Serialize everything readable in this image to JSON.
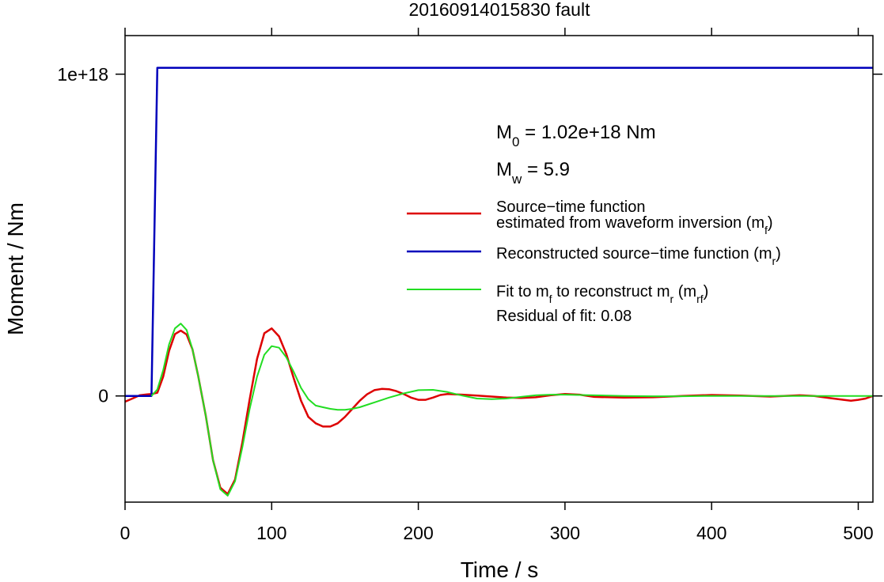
{
  "chart_data": {
    "type": "line",
    "title": "20160914015830 fault",
    "xlabel": "Time / s",
    "ylabel": "Moment / Nm",
    "xlim": [
      0,
      510
    ],
    "ylim": [
      -3.3e+17,
      1.12e+18
    ],
    "x_ticks": [
      0,
      100,
      200,
      300,
      400,
      500
    ],
    "x_tick_labels": [
      "0",
      "100",
      "200",
      "300",
      "400",
      "500"
    ],
    "y_ticks": [
      0,
      1e+18
    ],
    "y_tick_labels": [
      "0",
      "1e+18"
    ],
    "grid": false,
    "legend_placement": "right",
    "annotations": {
      "m0": "M₀ = 1.02e+18 Nm",
      "mw": "M_w = 5.9",
      "residual": "Residual of fit: 0.08"
    },
    "legend": [
      {
        "color": "#dd0000",
        "lines": [
          "Source−time function",
          "estimated from waveform inversion (m_f)"
        ]
      },
      {
        "color": "#0000bb",
        "lines": [
          "Reconstructed source−time function (m_r)"
        ]
      },
      {
        "color": "#22dd22",
        "lines": [
          "Fit to m_f to reconstruct m_r (m_rf)"
        ]
      }
    ],
    "series": [
      {
        "color": "#dd0000",
        "x": [
          0,
          5,
          10,
          15,
          18,
          22,
          26,
          30,
          34,
          38,
          42,
          46,
          50,
          55,
          60,
          65,
          70,
          75,
          80,
          85,
          90,
          95,
          100,
          105,
          110,
          115,
          120,
          125,
          130,
          135,
          140,
          145,
          150,
          155,
          160,
          165,
          170,
          175,
          180,
          185,
          190,
          195,
          200,
          205,
          210,
          215,
          220,
          230,
          240,
          250,
          260,
          270,
          280,
          290,
          300,
          310,
          320,
          340,
          360,
          380,
          400,
          420,
          440,
          460,
          470,
          480,
          490,
          495,
          500,
          505,
          510
        ],
        "y": [
          -1.8e+16,
          -8000000000000000.0,
          2000000000000000.0,
          5000000000000000.0,
          6000000000000000.0,
          1e+16,
          6e+16,
          1.4e+17,
          1.92e+17,
          2.03e+17,
          1.91e+17,
          1.45e+17,
          6e+16,
          -6e+16,
          -2e+17,
          -2.85e+17,
          -3.05e+17,
          -2.6e+17,
          -1.45e+17,
          -1e+16,
          1.15e+17,
          1.95e+17,
          2.1e+17,
          1.85e+17,
          1.3e+17,
          5.5e+16,
          -1.5e+16,
          -6.5e+16,
          -8.5e+16,
          -9.5e+16,
          -9.5e+16,
          -8.5e+16,
          -6.5e+16,
          -4e+16,
          -1.5e+16,
          5000000000000000.0,
          1.8e+16,
          2.2e+16,
          2.1e+16,
          1.5e+16,
          6000000000000000.0,
          -5000000000000000.0,
          -1.2e+16,
          -1.2e+16,
          -5000000000000000.0,
          3000000000000000.0,
          6000000000000000.0,
          4000000000000000.0,
          1000000000000000.0,
          -2000000000000000.0,
          -5000000000000000.0,
          -6000000000000000.0,
          -4000000000000000.0,
          2000000000000000.0,
          6000000000000000.0,
          4000000000000000.0,
          -3000000000000000.0,
          -5000000000000000.0,
          -4000000000000000.0,
          0,
          3000000000000000.0,
          1000000000000000.0,
          -2000000000000000.0,
          2000000000000000.0,
          0,
          -6000000000000000.0,
          -1.2e+16,
          -1.5e+16,
          -1.2e+16,
          -8000000000000000.0,
          0
        ]
      },
      {
        "color": "#0000bb",
        "x": [
          0,
          18,
          22,
          510
        ],
        "y": [
          0,
          0,
          1.02e+18,
          1.02e+18
        ]
      },
      {
        "color": "#22dd22",
        "x": [
          18,
          22,
          26,
          30,
          34,
          38,
          42,
          46,
          50,
          55,
          60,
          65,
          70,
          75,
          80,
          85,
          90,
          95,
          100,
          105,
          110,
          115,
          120,
          125,
          130,
          135,
          140,
          145,
          150,
          155,
          160,
          170,
          180,
          190,
          200,
          210,
          220,
          230,
          240,
          250,
          260,
          270,
          280,
          290,
          300,
          320,
          340,
          360,
          380,
          400,
          420,
          440,
          460,
          480,
          500,
          510
        ],
        "y": [
          0,
          2e+16,
          8e+16,
          1.6e+17,
          2.1e+17,
          2.25e+17,
          2.05e+17,
          1.45e+17,
          6e+16,
          -6e+16,
          -2e+17,
          -2.9e+17,
          -3.1e+17,
          -2.65e+17,
          -1.6e+17,
          -4e+16,
          6e+16,
          1.28e+17,
          1.55e+17,
          1.5e+17,
          1.2e+17,
          7.5e+16,
          2.5e+16,
          -1e+16,
          -3e+16,
          -3.5e+16,
          -4e+16,
          -4.3e+16,
          -4.3e+16,
          -4e+16,
          -3.5e+16,
          -2e+16,
          -5000000000000000.0,
          8000000000000000.0,
          1.8e+16,
          1.9e+16,
          1.2e+16,
          1000000000000000.0,
          -8000000000000000.0,
          -1e+16,
          -8000000000000000.0,
          -3000000000000000.0,
          2000000000000000.0,
          4000000000000000.0,
          4000000000000000.0,
          2000000000000000.0,
          0,
          -1000000000000000.0,
          -1000000000000000.0,
          0,
          0,
          0,
          0,
          0,
          0,
          0
        ]
      }
    ]
  }
}
